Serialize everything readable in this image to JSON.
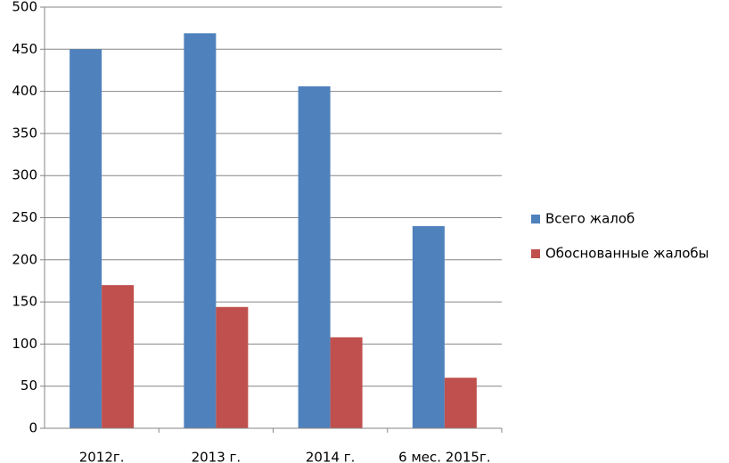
{
  "chart_data": {
    "type": "bar",
    "categories": [
      "2012г.",
      "2013 г.",
      "2014 г.",
      "6 мес. 2015г."
    ],
    "series": [
      {
        "name": "Всего жалоб",
        "color": "#4f81bd",
        "values": [
          450,
          469,
          406,
          240
        ]
      },
      {
        "name": "Обоснованные жалобы",
        "color": "#c0504d",
        "values": [
          170,
          144,
          108,
          60
        ]
      }
    ],
    "ylim": [
      0,
      500
    ],
    "yticks": [
      0,
      50,
      100,
      150,
      200,
      250,
      300,
      350,
      400,
      450,
      500
    ],
    "grid": true,
    "legend": "right"
  }
}
